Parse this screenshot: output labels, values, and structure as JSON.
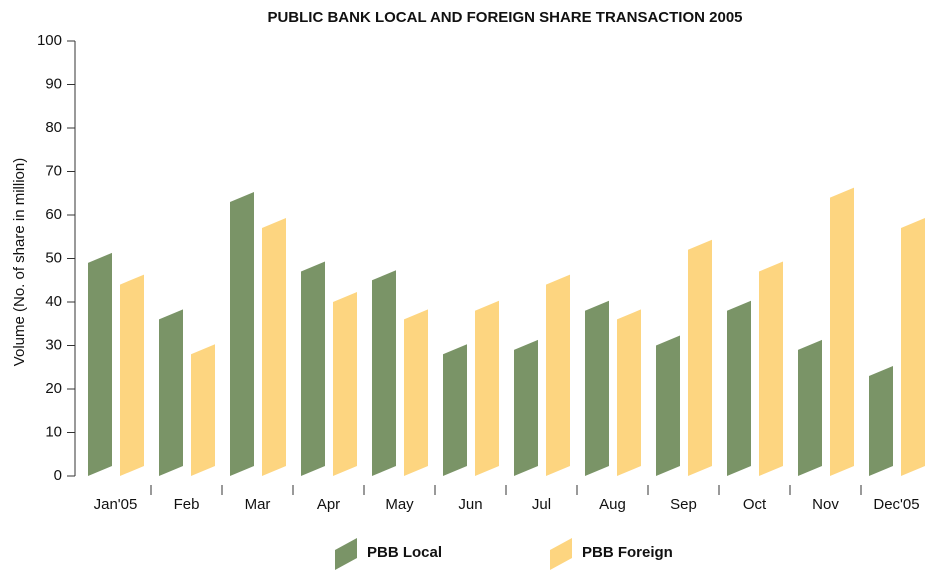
{
  "chart_data": {
    "type": "bar",
    "title": "PUBLIC BANK LOCAL AND FOREIGN SHARE TRANSACTION 2005",
    "y_label": "Volume (No. of share in million)",
    "categories": [
      "Jan'05",
      "Feb",
      "Mar",
      "Apr",
      "May",
      "Jun",
      "Jul",
      "Aug",
      "Sep",
      "Oct",
      "Nov",
      "Dec'05"
    ],
    "series": [
      {
        "name": "PBB Local",
        "color": "#7a9467",
        "values": [
          49,
          36,
          63,
          47,
          45,
          28,
          29,
          38,
          30,
          38,
          29,
          23
        ]
      },
      {
        "name": "PBB Foreign",
        "color": "#fdd580",
        "values": [
          44,
          28,
          57,
          40,
          36,
          38,
          44,
          36,
          52,
          47,
          64,
          57
        ]
      }
    ],
    "ylim": [
      0,
      100
    ],
    "yticks": [
      0,
      10,
      20,
      30,
      40,
      50,
      60,
      70,
      80,
      90,
      100
    ],
    "legend": "bottom"
  }
}
